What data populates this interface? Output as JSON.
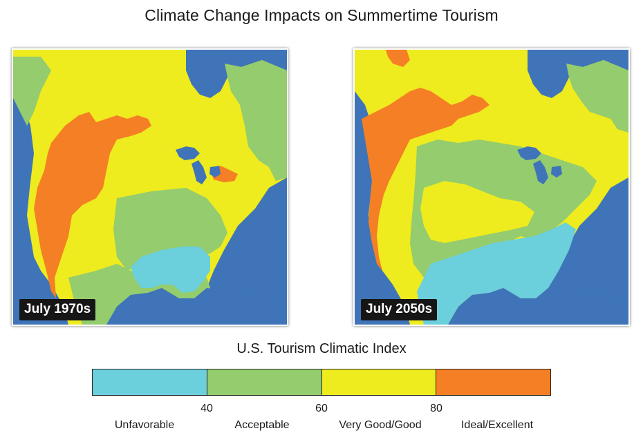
{
  "title": "Climate Change Impacts on Summertime Tourism",
  "maps": [
    {
      "label": "July 1970s"
    },
    {
      "label": "July 2050s"
    }
  ],
  "legend": {
    "title": "U.S. Tourism Climatic Index",
    "ticks": [
      "40",
      "60",
      "80"
    ],
    "categories": [
      "Unfavorable",
      "Acceptable",
      "Very Good/Good",
      "Ideal/Excellent"
    ]
  },
  "colors": {
    "water": "#3f74b8",
    "unfavorable": "#6ccfdc",
    "acceptable": "#94cc6e",
    "very_good": "#eeeb1e",
    "ideal": "#f57f24"
  }
}
